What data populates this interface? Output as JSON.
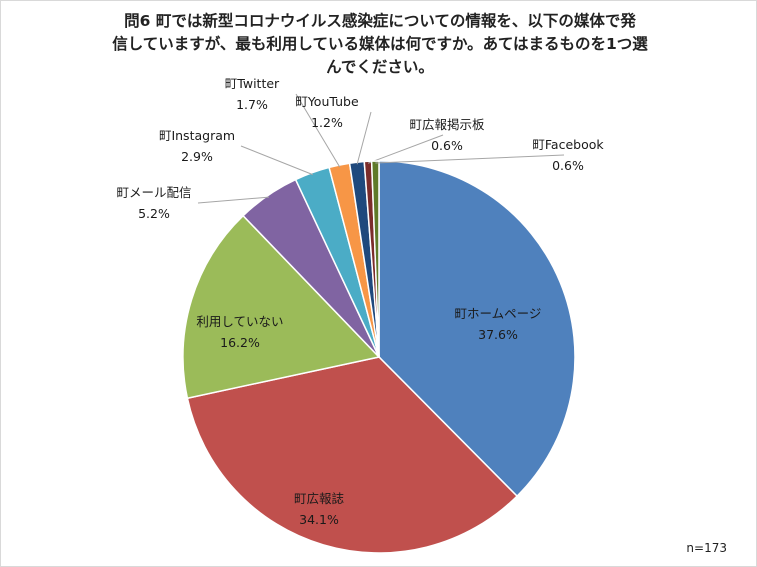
{
  "title_lines": [
    "問6 町では新型コロナウイルス感染症についての情報を、以下の媒体で発",
    "信していますが、最も利用している媒体は何ですか。あてはまるものを1つ選",
    "んでください。"
  ],
  "sample_note": "n=173",
  "chart_data": {
    "type": "pie",
    "slices": [
      {
        "label": "町ホームページ",
        "value": 37.6,
        "value_label": "37.6%",
        "color": "#4f81bd"
      },
      {
        "label": "町広報誌",
        "value": 34.1,
        "value_label": "34.1%",
        "color": "#c0504d"
      },
      {
        "label": "利用していない",
        "value": 16.2,
        "value_label": "16.2%",
        "color": "#9bbb59"
      },
      {
        "label": "町メール配信",
        "value": 5.2,
        "value_label": "5.2%",
        "color": "#8064a2"
      },
      {
        "label": "町Instagram",
        "value": 2.9,
        "value_label": "2.9%",
        "color": "#4bacc6"
      },
      {
        "label": "町Twitter",
        "value": 1.7,
        "value_label": "1.7%",
        "color": "#f79646"
      },
      {
        "label": "町YouTube",
        "value": 1.2,
        "value_label": "1.2%",
        "color": "#1f497d"
      },
      {
        "label": "町広報掲示板",
        "value": 0.6,
        "value_label": "0.6%",
        "color": "#7b2c2a"
      },
      {
        "label": "町Facebook",
        "value": 0.6,
        "value_label": "0.6%",
        "color": "#5f7a2a"
      }
    ]
  }
}
